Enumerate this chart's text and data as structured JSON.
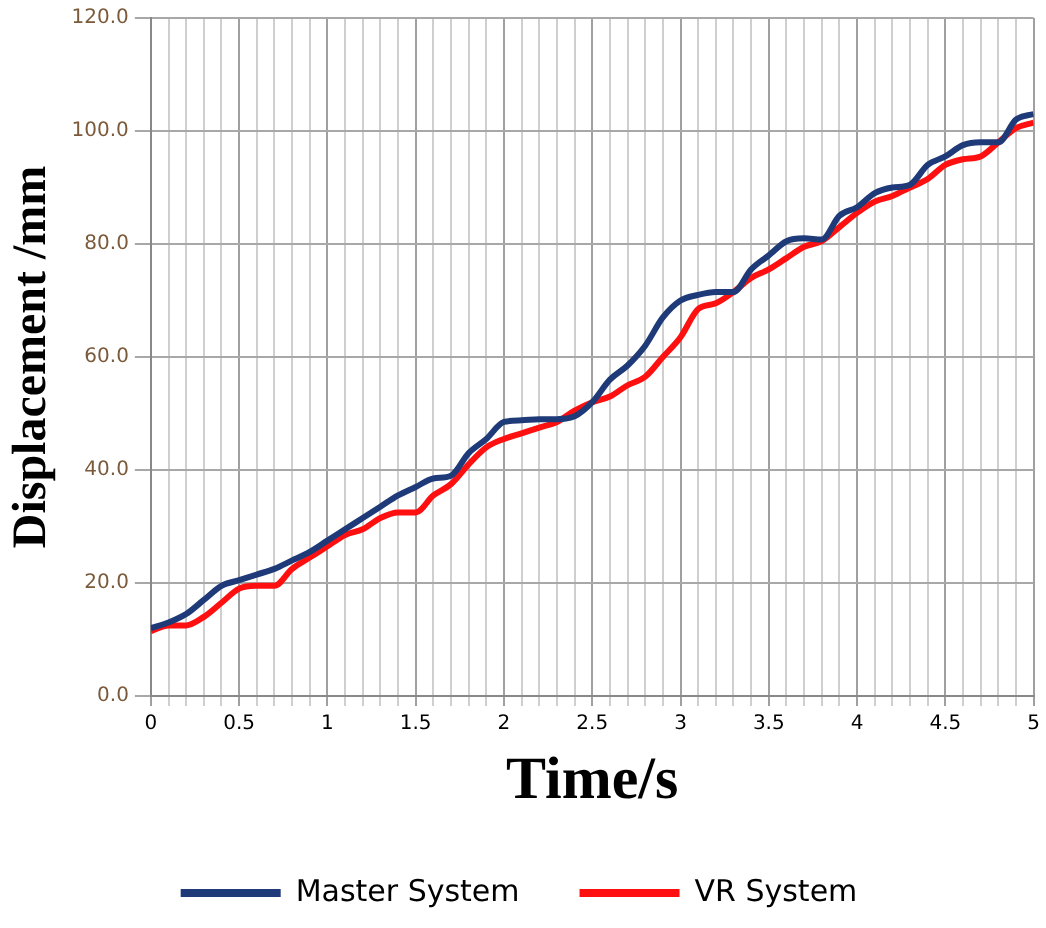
{
  "chart_data": {
    "type": "line",
    "xlabel": "Time/s",
    "ylabel": "Displacement /mm",
    "x": [
      0,
      0.1,
      0.2,
      0.3,
      0.4,
      0.5,
      0.6,
      0.7,
      0.8,
      0.9,
      1,
      1.1,
      1.2,
      1.3,
      1.4,
      1.5,
      1.6,
      1.7,
      1.8,
      1.9,
      2,
      2.1,
      2.2,
      2.3,
      2.4,
      2.5,
      2.6,
      2.7,
      2.8,
      2.9,
      3,
      3.1,
      3.2,
      3.3,
      3.4,
      3.5,
      3.6,
      3.7,
      3.8,
      3.9,
      4,
      4.1,
      4.2,
      4.3,
      4.4,
      4.5,
      4.6,
      4.7,
      4.8,
      4.9,
      5
    ],
    "series": [
      {
        "name": "Master System",
        "color": "#1f3a78",
        "values": [
          12,
          13,
          14.5,
          17,
          19.5,
          20.5,
          21.5,
          22.5,
          24,
          25.5,
          27.5,
          29.5,
          31.5,
          33.5,
          35.5,
          37,
          38.5,
          39,
          43,
          45.5,
          48.5,
          48.8,
          49,
          49,
          49.5,
          52,
          56,
          58.5,
          62,
          67,
          70,
          71,
          71.5,
          71.5,
          75.5,
          78,
          80.5,
          81,
          80.8,
          85,
          86.5,
          89,
          90,
          90.5,
          94,
          95.5,
          97.5,
          98,
          98,
          102,
          103
        ]
      },
      {
        "name": "VR System",
        "color": "#ff1010",
        "values": [
          11.5,
          12.5,
          12.5,
          14,
          16.5,
          19,
          19.5,
          19.5,
          22.5,
          24.5,
          26.5,
          28.5,
          29.5,
          31.5,
          32.5,
          32.5,
          35.5,
          37.5,
          41,
          44,
          45.5,
          46.5,
          47.5,
          48.5,
          50.5,
          52,
          53,
          55,
          56.5,
          60,
          63.5,
          68.5,
          69.5,
          71.5,
          74,
          75.5,
          77.5,
          79.5,
          80.5,
          83,
          85.5,
          87.5,
          88.5,
          90,
          91.5,
          94,
          95,
          95.5,
          98,
          100.5,
          101.5
        ]
      }
    ],
    "xlim": [
      0,
      5
    ],
    "xticks": [
      0,
      {
        "value": 0.1,
        "label": null
      },
      {
        "value": 0.2,
        "label": null
      },
      {
        "value": 0.3,
        "label": null
      },
      {
        "value": 0.4,
        "label": null
      },
      0.5,
      {
        "value": 0.6,
        "label": null
      },
      {
        "value": 0.7,
        "label": null
      },
      {
        "value": 0.8,
        "label": null
      },
      {
        "value": 0.9,
        "label": null
      },
      1,
      {
        "value": 1.1,
        "label": null
      },
      {
        "value": 1.2,
        "label": null
      },
      {
        "value": 1.3,
        "label": null
      },
      {
        "value": 1.4,
        "label": null
      },
      1.5,
      {
        "value": 1.6,
        "label": null
      },
      {
        "value": 1.7,
        "label": null
      },
      {
        "value": 1.8,
        "label": null
      },
      {
        "value": 1.9,
        "label": null
      },
      2,
      {
        "value": 2.1,
        "label": null
      },
      {
        "value": 2.2,
        "label": null
      },
      {
        "value": 2.3,
        "label": null
      },
      {
        "value": 2.4,
        "label": null
      },
      2.5,
      {
        "value": 2.6,
        "label": null
      },
      {
        "value": 2.7,
        "label": null
      },
      {
        "value": 2.8,
        "label": null
      },
      {
        "value": 2.9,
        "label": null
      },
      3,
      {
        "value": 3.1,
        "label": null
      },
      {
        "value": 3.2,
        "label": null
      },
      {
        "value": 3.3,
        "label": null
      },
      {
        "value": 3.4,
        "label": null
      },
      3.5,
      {
        "value": 3.6,
        "label": null
      },
      {
        "value": 3.7,
        "label": null
      },
      {
        "value": 3.8,
        "label": null
      },
      {
        "value": 3.9,
        "label": null
      },
      4,
      {
        "value": 4.1,
        "label": null
      },
      {
        "value": 4.2,
        "label": null
      },
      {
        "value": 4.3,
        "label": null
      },
      {
        "value": 4.4,
        "label": null
      },
      4.5,
      {
        "value": 4.6,
        "label": null
      },
      {
        "value": 4.7,
        "label": null
      },
      {
        "value": 4.8,
        "label": null
      },
      {
        "value": 4.9,
        "label": null
      },
      5
    ],
    "ylim": [
      0,
      120
    ],
    "yticks": [
      {
        "value": 0,
        "label": "0.0"
      },
      {
        "value": 20,
        "label": "20.0"
      },
      {
        "value": 40,
        "label": "40.0"
      },
      {
        "value": 60,
        "label": "60.0"
      },
      {
        "value": 80,
        "label": "80.0"
      },
      {
        "value": 100,
        "label": "100.0"
      },
      {
        "value": 120,
        "label": "120.0"
      }
    ],
    "grid": true,
    "legend": "bottom",
    "marker": "none",
    "line_style": "solid"
  }
}
